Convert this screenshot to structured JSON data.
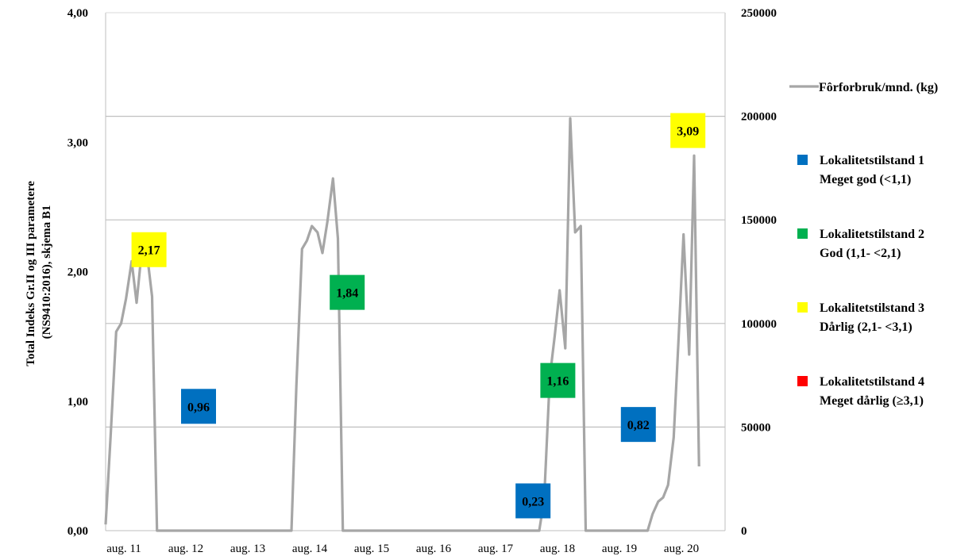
{
  "chart_data": {
    "type": "line",
    "left_axis": {
      "label_line1": "Total Indeks Gr.II og III parametere",
      "label_line2": "(NS9410:2016), skjema B1",
      "ylim": [
        0,
        4
      ],
      "ticks": [
        "0,00",
        "1,00",
        "2,00",
        "3,00",
        "4,00"
      ]
    },
    "right_axis": {
      "ylim": [
        0,
        250000
      ],
      "ticks": [
        "0",
        "50000",
        "100000",
        "150000",
        "200000",
        "250000"
      ]
    },
    "x_axis": {
      "ticks": [
        "aug. 11",
        "aug. 12",
        "aug. 13",
        "aug. 14",
        "aug. 15",
        "aug. 16",
        "aug. 17",
        "aug. 18",
        "aug. 19",
        "aug. 20"
      ]
    },
    "gridlines": [
      0,
      50000,
      100000,
      150000,
      200000
    ],
    "series": [
      {
        "name": "Fôrforbruk/mnd. (kg)",
        "axis": "right",
        "color": "#a6a6a6",
        "points": [
          [
            0.0,
            3000
          ],
          [
            0.08,
            45000
          ],
          [
            0.17,
            96000
          ],
          [
            0.25,
            100000
          ],
          [
            0.33,
            112000
          ],
          [
            0.42,
            130000
          ],
          [
            0.5,
            110000
          ],
          [
            0.58,
            134000
          ],
          [
            0.67,
            133000
          ],
          [
            0.75,
            113000
          ],
          [
            0.83,
            0
          ],
          [
            0.92,
            0
          ],
          [
            1.0,
            0
          ],
          [
            2.0,
            0
          ],
          [
            3.0,
            0
          ],
          [
            3.08,
            70000
          ],
          [
            3.17,
            136000
          ],
          [
            3.25,
            140000
          ],
          [
            3.33,
            147000
          ],
          [
            3.42,
            144000
          ],
          [
            3.5,
            134000
          ],
          [
            3.58,
            149000
          ],
          [
            3.67,
            170000
          ],
          [
            3.75,
            141000
          ],
          [
            3.83,
            0
          ],
          [
            4.0,
            0
          ],
          [
            5.0,
            0
          ],
          [
            6.0,
            0
          ],
          [
            7.0,
            0
          ],
          [
            7.08,
            15000
          ],
          [
            7.17,
            74000
          ],
          [
            7.25,
            94000
          ],
          [
            7.33,
            116000
          ],
          [
            7.42,
            88000
          ],
          [
            7.5,
            199000
          ],
          [
            7.58,
            144000
          ],
          [
            7.67,
            147000
          ],
          [
            7.75,
            0
          ],
          [
            8.0,
            0
          ],
          [
            8.75,
            0
          ],
          [
            8.83,
            8000
          ],
          [
            8.92,
            14000
          ],
          [
            9.0,
            16000
          ],
          [
            9.08,
            22000
          ],
          [
            9.17,
            45000
          ],
          [
            9.25,
            93000
          ],
          [
            9.33,
            143000
          ],
          [
            9.42,
            85000
          ],
          [
            9.5,
            181000
          ],
          [
            9.58,
            31000
          ]
        ]
      }
    ],
    "data_labels": [
      {
        "text": "2,17",
        "value": 2.17,
        "x": 0.7,
        "class": 3
      },
      {
        "text": "0,96",
        "value": 0.96,
        "x": 1.5,
        "class": 1
      },
      {
        "text": "1,84",
        "value": 1.84,
        "x": 3.9,
        "class": 2
      },
      {
        "text": "0,23",
        "value": 0.23,
        "x": 6.9,
        "class": 1
      },
      {
        "text": "1,16",
        "value": 1.16,
        "x": 7.3,
        "class": 2
      },
      {
        "text": "0,82",
        "value": 0.82,
        "x": 8.6,
        "class": 1
      },
      {
        "text": "3,09",
        "value": 3.09,
        "x": 9.4,
        "class": 3
      }
    ],
    "legend": {
      "placement": "right",
      "line_entry": "Fôrforbruk/mnd. (kg)",
      "classes": [
        {
          "id": 1,
          "line1": "Lokalitetstilstand  1",
          "line2": "Meget god (<1,1)",
          "color": "#0070c0"
        },
        {
          "id": 2,
          "line1": "Lokalitetstilstand 2",
          "line2": "God (1,1- <2,1)",
          "color": "#00b050"
        },
        {
          "id": 3,
          "line1": "Lokalitetstilstand 3",
          "line2": "Dårlig (2,1- <3,1)",
          "color": "#ffff00"
        },
        {
          "id": 4,
          "line1": "Lokalitetstilstand 4",
          "line2": "Meget dårlig (≥3,1)",
          "color": "#ff0000"
        }
      ]
    }
  }
}
